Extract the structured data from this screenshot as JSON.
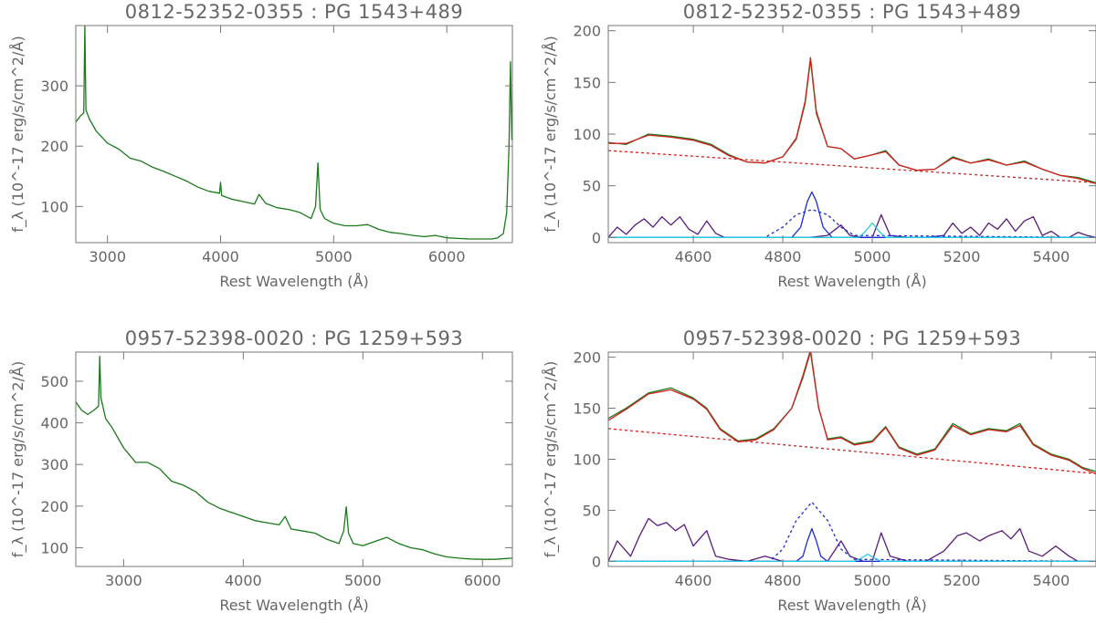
{
  "chart_data": [
    {
      "type": "line",
      "title": "0812-52352-0355 : PG 1543+489",
      "xlabel": "Rest Wavelength (Å)",
      "ylabel": "f_λ (10^-17 erg/s/cm^2/Å)",
      "xlim": [
        2720,
        6580
      ],
      "ylim": [
        40,
        400
      ],
      "xticks": [
        3000,
        4000,
        5000,
        6000
      ],
      "yticks": [
        100,
        200,
        300
      ],
      "series": [
        {
          "color": "#1a7a1a",
          "x": [
            2720,
            2760,
            2790,
            2800,
            2810,
            2840,
            2900,
            3000,
            3100,
            3200,
            3300,
            3400,
            3500,
            3600,
            3700,
            3800,
            3900,
            3990,
            4000,
            4010,
            4100,
            4200,
            4300,
            4340,
            4400,
            4500,
            4600,
            4700,
            4800,
            4840,
            4861,
            4880,
            4920,
            5000,
            5100,
            5200,
            5300,
            5400,
            5500,
            5600,
            5700,
            5800,
            5900,
            6000,
            6100,
            6200,
            6300,
            6400,
            6450,
            6500,
            6530,
            6550,
            6563,
            6575
          ],
          "y": [
            240,
            250,
            255,
            400,
            260,
            245,
            225,
            205,
            195,
            180,
            175,
            165,
            158,
            150,
            142,
            132,
            125,
            122,
            140,
            118,
            112,
            108,
            104,
            120,
            105,
            98,
            95,
            90,
            80,
            100,
            172,
            95,
            80,
            72,
            68,
            68,
            70,
            62,
            57,
            55,
            52,
            50,
            52,
            48,
            47,
            46,
            46,
            46,
            48,
            55,
            90,
            200,
            340,
            210
          ]
        }
      ]
    },
    {
      "type": "line",
      "title": "0812-52352-0355 : PG 1543+489",
      "xlabel": "Rest Wavelength (Å)",
      "ylabel": "f_λ (10^-17 erg/s/cm^2/Å)",
      "xlim": [
        4410,
        5500
      ],
      "ylim": [
        -5,
        205
      ],
      "xticks": [
        4600,
        4800,
        5000,
        5200,
        5400
      ],
      "yticks": [
        0,
        50,
        100,
        150,
        200
      ],
      "series": [
        {
          "color": "#1a7a1a",
          "x": [
            4410,
            4450,
            4500,
            4550,
            4600,
            4640,
            4680,
            4720,
            4760,
            4800,
            4830,
            4850,
            4862,
            4875,
            4900,
            4930,
            4960,
            5000,
            5030,
            5060,
            5100,
            5140,
            5180,
            5220,
            5260,
            5300,
            5340,
            5380,
            5420,
            5460,
            5500
          ],
          "y": [
            92,
            90,
            100,
            98,
            95,
            90,
            80,
            73,
            72,
            78,
            95,
            130,
            172,
            120,
            88,
            86,
            76,
            80,
            84,
            70,
            65,
            66,
            78,
            72,
            76,
            70,
            74,
            66,
            60,
            58,
            53
          ]
        },
        {
          "color": "#d42020",
          "x": [
            4410,
            4450,
            4500,
            4550,
            4600,
            4640,
            4680,
            4720,
            4760,
            4800,
            4830,
            4850,
            4862,
            4875,
            4900,
            4930,
            4960,
            5000,
            5030,
            5060,
            5100,
            5140,
            5180,
            5220,
            5260,
            5300,
            5340,
            5380,
            5420,
            5460,
            5500
          ],
          "y": [
            91,
            91,
            99,
            97,
            94,
            89,
            79,
            73,
            72,
            78,
            96,
            132,
            174,
            122,
            88,
            86,
            76,
            80,
            83,
            70,
            65,
            66,
            77,
            72,
            75,
            70,
            73,
            66,
            60,
            57,
            52
          ]
        },
        {
          "color": "#d42020",
          "dashed": true,
          "x": [
            4410,
            5500
          ],
          "y": [
            84,
            53
          ]
        },
        {
          "color": "#5a1a7a",
          "x": [
            4410,
            4430,
            4450,
            4470,
            4490,
            4510,
            4530,
            4550,
            4570,
            4590,
            4610,
            4630,
            4650,
            4670,
            4700,
            4750,
            4800,
            4860,
            4900,
            4930,
            4950,
            4980,
            5000,
            5020,
            5040,
            5080,
            5120,
            5160,
            5180,
            5200,
            5220,
            5240,
            5260,
            5280,
            5300,
            5320,
            5340,
            5360,
            5380,
            5400,
            5420,
            5440,
            5460,
            5480,
            5500
          ],
          "y": [
            0,
            10,
            3,
            12,
            18,
            10,
            20,
            12,
            20,
            8,
            3,
            16,
            4,
            0,
            0,
            0,
            0,
            0,
            2,
            12,
            2,
            0,
            0,
            22,
            2,
            0,
            0,
            2,
            14,
            4,
            10,
            2,
            14,
            8,
            18,
            6,
            16,
            20,
            2,
            6,
            0,
            0,
            5,
            2,
            0
          ]
        },
        {
          "color": "#1a2ad4",
          "x": [
            4410,
            4820,
            4840,
            4855,
            4865,
            4875,
            4890,
            4910,
            5500
          ],
          "y": [
            0,
            0,
            10,
            35,
            44,
            35,
            10,
            0,
            0
          ]
        },
        {
          "color": "#1a2ad4",
          "dashed": true,
          "x": [
            4410,
            4760,
            4800,
            4830,
            4865,
            4900,
            4930,
            4960,
            5500
          ],
          "y": [
            0,
            0,
            10,
            22,
            27,
            22,
            10,
            2,
            0
          ]
        },
        {
          "color": "#22cce0",
          "x": [
            4410,
            4970,
            4985,
            5000,
            5015,
            5030,
            5500
          ],
          "y": [
            0,
            0,
            6,
            14,
            6,
            0,
            0
          ]
        }
      ]
    },
    {
      "type": "line",
      "title": "0957-52398-0020 : PG 1259+593",
      "xlabel": "Rest Wavelength (Å)",
      "ylabel": "f_λ (10^-17 erg/s/cm^2/Å)",
      "xlim": [
        2600,
        6250
      ],
      "ylim": [
        55,
        570
      ],
      "xticks": [
        3000,
        4000,
        5000,
        6000
      ],
      "yticks": [
        100,
        200,
        300,
        400,
        500
      ],
      "series": [
        {
          "color": "#1a7a1a",
          "x": [
            2600,
            2650,
            2700,
            2750,
            2790,
            2800,
            2810,
            2850,
            2900,
            3000,
            3100,
            3200,
            3300,
            3400,
            3500,
            3600,
            3700,
            3800,
            3900,
            4000,
            4100,
            4200,
            4300,
            4350,
            4400,
            4500,
            4600,
            4700,
            4800,
            4840,
            4861,
            4880,
            4920,
            5000,
            5100,
            5200,
            5300,
            5400,
            5500,
            5600,
            5700,
            5800,
            5900,
            6000,
            6100,
            6200,
            6250
          ],
          "y": [
            450,
            430,
            420,
            430,
            440,
            560,
            460,
            410,
            390,
            340,
            305,
            305,
            290,
            260,
            250,
            235,
            210,
            195,
            185,
            175,
            165,
            160,
            155,
            175,
            145,
            140,
            135,
            120,
            110,
            140,
            198,
            135,
            110,
            105,
            115,
            125,
            110,
            100,
            95,
            85,
            78,
            75,
            73,
            72,
            72,
            74,
            75
          ]
        }
      ]
    },
    {
      "type": "line",
      "title": "0957-52398-0020 : PG 1259+593",
      "xlabel": "Rest Wavelength (Å)",
      "ylabel": "f_λ (10^-17 erg/s/cm^2/Å)",
      "xlim": [
        4410,
        5500
      ],
      "ylim": [
        -5,
        205
      ],
      "xticks": [
        4600,
        4800,
        5000,
        5200,
        5400
      ],
      "yticks": [
        0,
        50,
        100,
        150,
        200
      ],
      "series": [
        {
          "color": "#1a7a1a",
          "x": [
            4410,
            4450,
            4500,
            4550,
            4600,
            4630,
            4660,
            4700,
            4740,
            4780,
            4820,
            4845,
            4862,
            4880,
            4900,
            4930,
            4960,
            5000,
            5030,
            5060,
            5100,
            5140,
            5180,
            5220,
            5260,
            5300,
            5330,
            5360,
            5400,
            5440,
            5470,
            5500
          ],
          "y": [
            140,
            150,
            165,
            170,
            160,
            150,
            130,
            118,
            120,
            130,
            150,
            180,
            205,
            150,
            120,
            122,
            115,
            118,
            132,
            112,
            105,
            110,
            135,
            125,
            130,
            128,
            135,
            115,
            105,
            100,
            92,
            88
          ]
        },
        {
          "color": "#d42020",
          "x": [
            4410,
            4450,
            4500,
            4550,
            4600,
            4630,
            4660,
            4700,
            4740,
            4780,
            4820,
            4845,
            4862,
            4880,
            4900,
            4930,
            4960,
            5000,
            5030,
            5060,
            5100,
            5140,
            5180,
            5220,
            5260,
            5300,
            5330,
            5360,
            5400,
            5440,
            5470,
            5500
          ],
          "y": [
            138,
            149,
            164,
            168,
            159,
            149,
            129,
            117,
            119,
            129,
            150,
            182,
            207,
            151,
            119,
            121,
            114,
            117,
            131,
            111,
            104,
            109,
            133,
            124,
            129,
            127,
            133,
            114,
            104,
            99,
            91,
            86
          ]
        },
        {
          "color": "#d42020",
          "dashed": true,
          "x": [
            4410,
            5500
          ],
          "y": [
            130,
            86
          ]
        },
        {
          "color": "#5a1a7a",
          "x": [
            4410,
            4430,
            4460,
            4480,
            4500,
            4520,
            4540,
            4560,
            4580,
            4600,
            4630,
            4650,
            4680,
            4720,
            4760,
            4800,
            4860,
            4900,
            4930,
            4950,
            4980,
            5000,
            5020,
            5040,
            5080,
            5120,
            5160,
            5190,
            5210,
            5240,
            5260,
            5290,
            5310,
            5330,
            5350,
            5380,
            5410,
            5440,
            5460,
            5480,
            5500
          ],
          "y": [
            0,
            20,
            5,
            25,
            42,
            35,
            38,
            30,
            36,
            15,
            30,
            5,
            2,
            0,
            5,
            0,
            0,
            0,
            20,
            5,
            0,
            0,
            28,
            5,
            0,
            0,
            10,
            25,
            28,
            20,
            25,
            30,
            22,
            32,
            10,
            5,
            15,
            5,
            0,
            0,
            0
          ]
        },
        {
          "color": "#1a2ad4",
          "x": [
            4410,
            4830,
            4845,
            4855,
            4865,
            4875,
            4885,
            4900,
            5500
          ],
          "y": [
            0,
            0,
            5,
            20,
            32,
            20,
            5,
            0,
            0
          ]
        },
        {
          "color": "#1a2ad4",
          "dashed": true,
          "x": [
            4410,
            4770,
            4800,
            4830,
            4865,
            4900,
            4930,
            4960,
            5500
          ],
          "y": [
            0,
            0,
            12,
            40,
            58,
            40,
            12,
            2,
            0
          ]
        },
        {
          "color": "#22cce0",
          "x": [
            4410,
            4960,
            4975,
            4990,
            5005,
            5020,
            5500
          ],
          "y": [
            0,
            0,
            3,
            7,
            3,
            0,
            0
          ]
        }
      ]
    }
  ]
}
